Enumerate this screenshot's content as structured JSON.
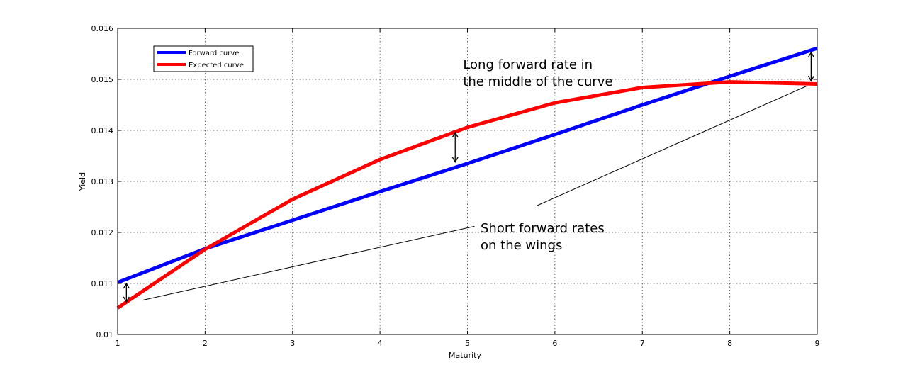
{
  "chart_data": {
    "type": "line",
    "title": "",
    "xlabel": "Maturity",
    "ylabel": "Yield",
    "xlim": [
      1,
      9
    ],
    "ylim": [
      0.01,
      0.016
    ],
    "xticks": [
      "1",
      "2",
      "3",
      "4",
      "5",
      "6",
      "7",
      "8",
      "9"
    ],
    "yticks": [
      "0.01",
      "0.011",
      "0.012",
      "0.013",
      "0.014",
      "0.015",
      "0.016"
    ],
    "grid": true,
    "legend_position": "top-left",
    "series": [
      {
        "name": "Forward curve",
        "color": "#0000ff",
        "x": [
          1,
          2,
          3,
          4,
          5,
          6,
          7,
          8,
          9
        ],
        "y": [
          0.01102,
          0.01168,
          0.01224,
          0.0128,
          0.01335,
          0.01392,
          0.0145,
          0.01506,
          0.01561
        ]
      },
      {
        "name": "Expected curve",
        "color": "#ff0000",
        "x": [
          1,
          2,
          3,
          4,
          5,
          6,
          7,
          8,
          9
        ],
        "y": [
          0.01052,
          0.01167,
          0.01265,
          0.01343,
          0.01406,
          0.01454,
          0.01484,
          0.01495,
          0.01491
        ]
      }
    ],
    "annotations": [
      {
        "lines": [
          "Long forward rate in",
          "the middle of the curve"
        ],
        "x": 4.95,
        "y": 0.01521
      },
      {
        "lines": [
          "Short forward rates",
          "on the wings"
        ],
        "x": 5.15,
        "y": 0.012
      }
    ],
    "pointer_lines": [
      {
        "from": [
          1.28,
          0.01067
        ],
        "to": [
          5.08,
          0.01212
        ]
      },
      {
        "from": [
          5.8,
          0.01253
        ],
        "to": [
          8.88,
          0.01487
        ]
      }
    ],
    "gap_arrows": [
      {
        "x": 1.1,
        "y1": 0.01064,
        "y2": 0.011
      },
      {
        "x": 4.86,
        "y1": 0.01338,
        "y2": 0.01396
      },
      {
        "x": 8.93,
        "y1": 0.01497,
        "y2": 0.01553
      }
    ]
  }
}
